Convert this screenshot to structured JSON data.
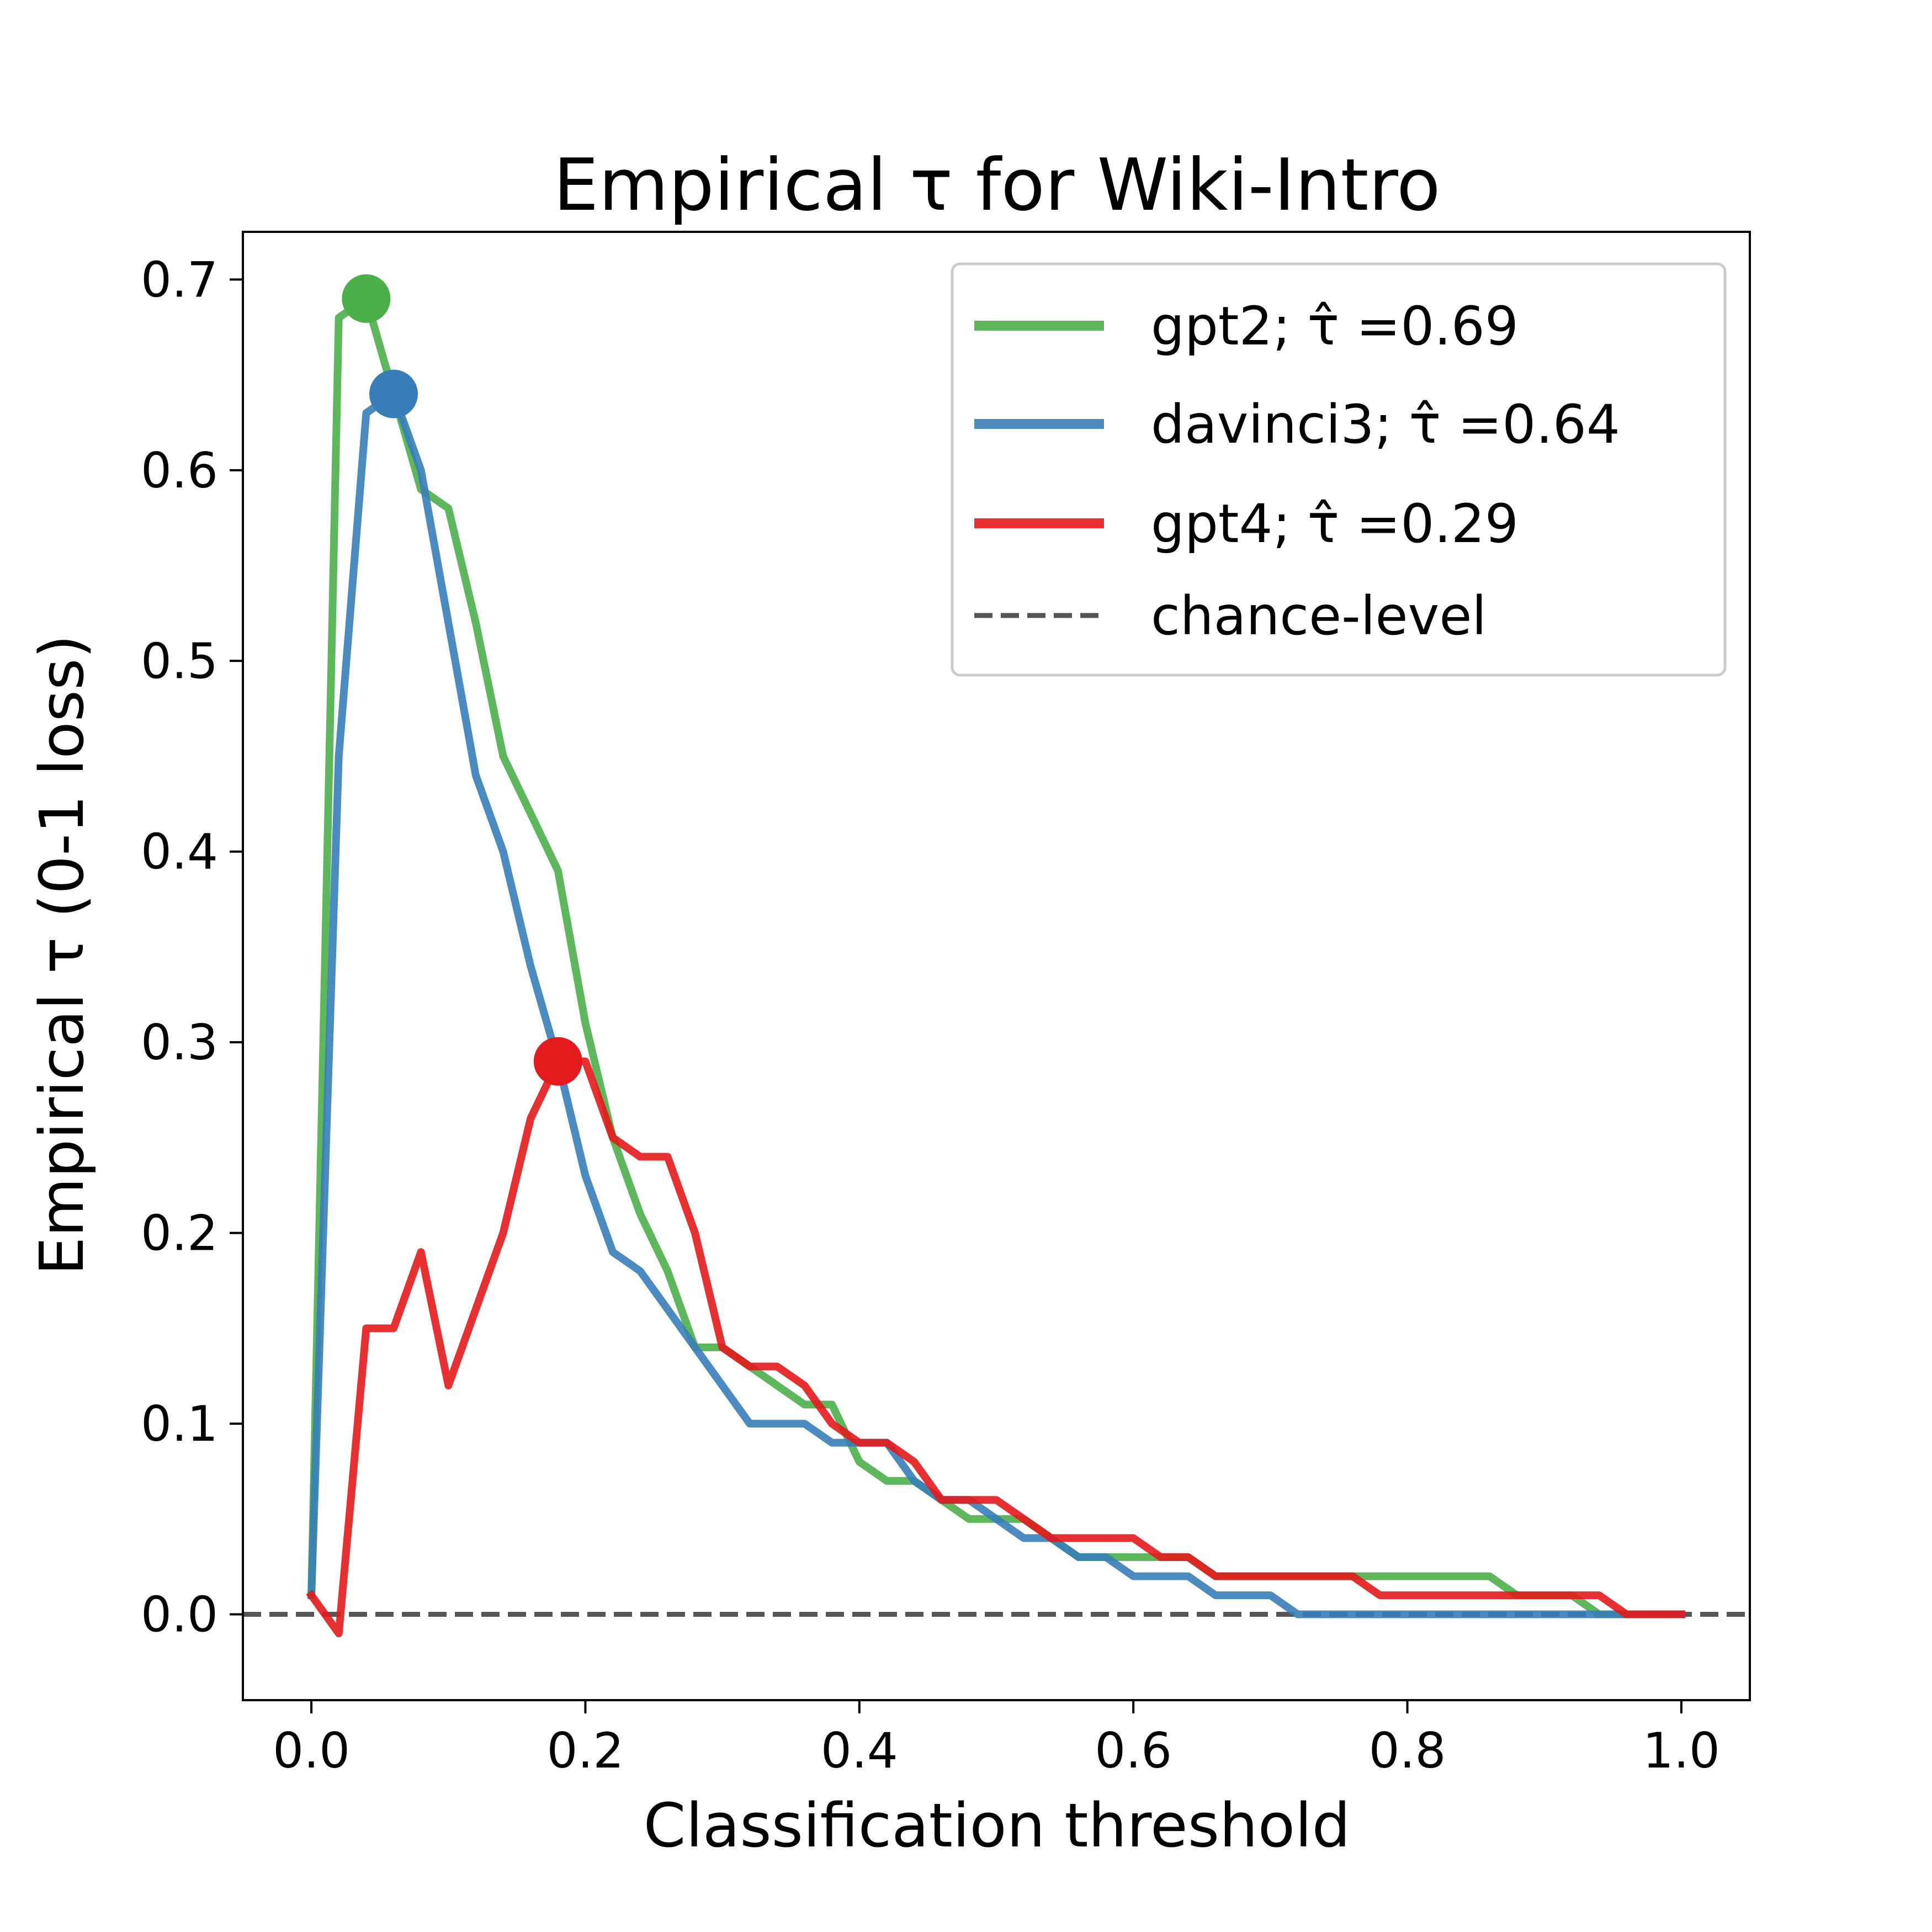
{
  "chart_data": {
    "type": "line",
    "title": "Empirical τ for Wiki-Intro",
    "xlabel": "Classification threshold",
    "ylabel": "Empirical τ (0-1 loss)",
    "xlim": [
      -0.05,
      1.05
    ],
    "ylim": [
      -0.045,
      0.725
    ],
    "xticks": [
      0.0,
      0.2,
      0.4,
      0.6,
      0.8,
      1.0
    ],
    "xtick_labels": [
      "0.0",
      "0.2",
      "0.4",
      "0.6",
      "0.8",
      "1.0"
    ],
    "yticks": [
      0.0,
      0.1,
      0.2,
      0.3,
      0.4,
      0.5,
      0.6,
      0.7
    ],
    "ytick_labels": [
      "0.0",
      "0.1",
      "0.2",
      "0.3",
      "0.4",
      "0.5",
      "0.6",
      "0.7"
    ],
    "grid": false,
    "legend_position": "top-right",
    "series": [
      {
        "name": "gpt2; τ̂ =0.69",
        "color": "#4daf4a",
        "x": [
          0.0,
          0.02,
          0.04,
          0.06,
          0.08,
          0.1,
          0.12,
          0.14,
          0.16,
          0.18,
          0.2,
          0.22,
          0.24,
          0.26,
          0.28,
          0.3,
          0.32,
          0.34,
          0.36,
          0.38,
          0.4,
          0.42,
          0.44,
          0.46,
          0.48,
          0.5,
          0.52,
          0.54,
          0.56,
          0.58,
          0.6,
          0.62,
          0.64,
          0.66,
          0.68,
          0.7,
          0.72,
          0.74,
          0.76,
          0.78,
          0.8,
          0.82,
          0.84,
          0.86,
          0.88,
          0.9,
          0.92,
          0.94,
          0.96,
          0.98,
          1.0
        ],
        "y": [
          0.01,
          0.68,
          0.69,
          0.64,
          0.59,
          0.58,
          0.52,
          0.45,
          0.42,
          0.39,
          0.31,
          0.25,
          0.21,
          0.18,
          0.14,
          0.14,
          0.13,
          0.12,
          0.11,
          0.11,
          0.08,
          0.07,
          0.07,
          0.06,
          0.05,
          0.05,
          0.05,
          0.04,
          0.03,
          0.03,
          0.03,
          0.03,
          0.03,
          0.02,
          0.02,
          0.02,
          0.02,
          0.02,
          0.02,
          0.02,
          0.02,
          0.02,
          0.02,
          0.02,
          0.01,
          0.01,
          0.01,
          0.0,
          0.0,
          0.0,
          0.0
        ]
      },
      {
        "name": "davinci3; τ̂ =0.64",
        "color": "#377eb8",
        "x": [
          0.0,
          0.02,
          0.04,
          0.06,
          0.08,
          0.1,
          0.12,
          0.14,
          0.16,
          0.18,
          0.2,
          0.22,
          0.24,
          0.26,
          0.28,
          0.3,
          0.32,
          0.34,
          0.36,
          0.38,
          0.4,
          0.42,
          0.44,
          0.46,
          0.48,
          0.5,
          0.52,
          0.54,
          0.56,
          0.58,
          0.6,
          0.62,
          0.64,
          0.66,
          0.68,
          0.7,
          0.72,
          0.74,
          0.76,
          0.78,
          0.8,
          0.82,
          0.84,
          0.86,
          0.88,
          0.9,
          0.92,
          0.94,
          0.96,
          0.98,
          1.0
        ],
        "y": [
          0.01,
          0.45,
          0.63,
          0.64,
          0.6,
          0.52,
          0.44,
          0.4,
          0.34,
          0.29,
          0.23,
          0.19,
          0.18,
          0.16,
          0.14,
          0.12,
          0.1,
          0.1,
          0.1,
          0.09,
          0.09,
          0.09,
          0.07,
          0.06,
          0.06,
          0.05,
          0.04,
          0.04,
          0.03,
          0.03,
          0.02,
          0.02,
          0.02,
          0.01,
          0.01,
          0.01,
          0.0,
          0.0,
          0.0,
          0.0,
          0.0,
          0.0,
          0.0,
          0.0,
          0.0,
          0.0,
          0.0,
          0.0,
          0.0,
          0.0,
          0.0
        ]
      },
      {
        "name": "gpt4; τ̂ =0.29",
        "color": "#e41a1c",
        "x": [
          0.0,
          0.02,
          0.04,
          0.06,
          0.08,
          0.1,
          0.12,
          0.14,
          0.16,
          0.18,
          0.2,
          0.22,
          0.24,
          0.26,
          0.28,
          0.3,
          0.32,
          0.34,
          0.36,
          0.38,
          0.4,
          0.42,
          0.44,
          0.46,
          0.48,
          0.5,
          0.52,
          0.54,
          0.56,
          0.58,
          0.6,
          0.62,
          0.64,
          0.66,
          0.68,
          0.7,
          0.72,
          0.74,
          0.76,
          0.78,
          0.8,
          0.82,
          0.84,
          0.86,
          0.88,
          0.9,
          0.92,
          0.94,
          0.96,
          0.98,
          1.0
        ],
        "y": [
          0.01,
          -0.01,
          0.15,
          0.15,
          0.19,
          0.12,
          0.16,
          0.2,
          0.26,
          0.29,
          0.29,
          0.25,
          0.24,
          0.24,
          0.2,
          0.14,
          0.13,
          0.13,
          0.12,
          0.1,
          0.09,
          0.09,
          0.08,
          0.06,
          0.06,
          0.06,
          0.05,
          0.04,
          0.04,
          0.04,
          0.04,
          0.03,
          0.03,
          0.02,
          0.02,
          0.02,
          0.02,
          0.02,
          0.02,
          0.01,
          0.01,
          0.01,
          0.01,
          0.01,
          0.01,
          0.01,
          0.01,
          0.01,
          0.0,
          0.0,
          0.0
        ]
      }
    ],
    "markers": [
      {
        "series": "gpt2; τ̂ =0.69",
        "x": 0.04,
        "y": 0.69,
        "color": "#4daf4a"
      },
      {
        "series": "davinci3; τ̂ =0.64",
        "x": 0.06,
        "y": 0.64,
        "color": "#377eb8"
      },
      {
        "series": "gpt4; τ̂ =0.29",
        "x": 0.18,
        "y": 0.29,
        "color": "#e41a1c"
      }
    ],
    "reference_line": {
      "name": "chance-level",
      "y": 0.0,
      "color": "#555555",
      "style": "dashed"
    }
  }
}
